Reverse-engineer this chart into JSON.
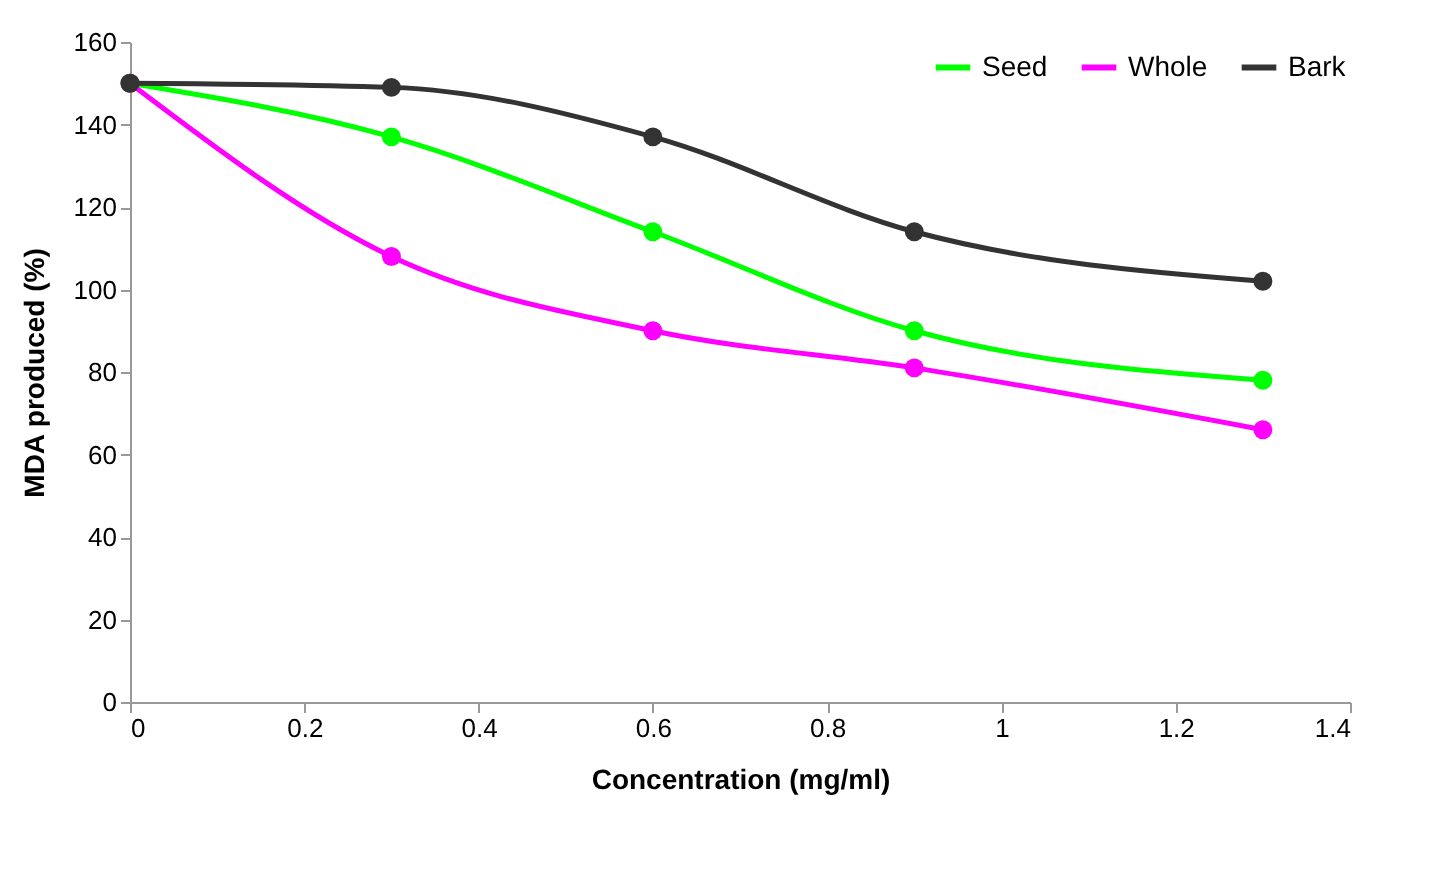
{
  "chart_data": {
    "type": "line",
    "xlabel": "Concentration (mg/ml)",
    "ylabel": "MDA produced (%)",
    "x": [
      0,
      0.3,
      0.6,
      0.9,
      1.3
    ],
    "series": [
      {
        "name": "Seed",
        "color": "#00ff00",
        "values": [
          150,
          137,
          114,
          90,
          78
        ]
      },
      {
        "name": "Whole",
        "color": "#ff00ff",
        "values": [
          150,
          108,
          90,
          81,
          66
        ]
      },
      {
        "name": "Bark",
        "color": "#333333",
        "values": [
          150,
          149,
          137,
          114,
          102
        ]
      }
    ],
    "xlim": [
      0,
      1.4
    ],
    "xticks": [
      0,
      0.2,
      0.4,
      0.6,
      0.8,
      1,
      1.2,
      1.4
    ],
    "ylim": [
      0,
      160
    ],
    "yticks": [
      0,
      20,
      40,
      60,
      80,
      100,
      120,
      140,
      160
    ],
    "grid": false,
    "legend": "top right",
    "marker": "circle",
    "line_style": "solid"
  }
}
